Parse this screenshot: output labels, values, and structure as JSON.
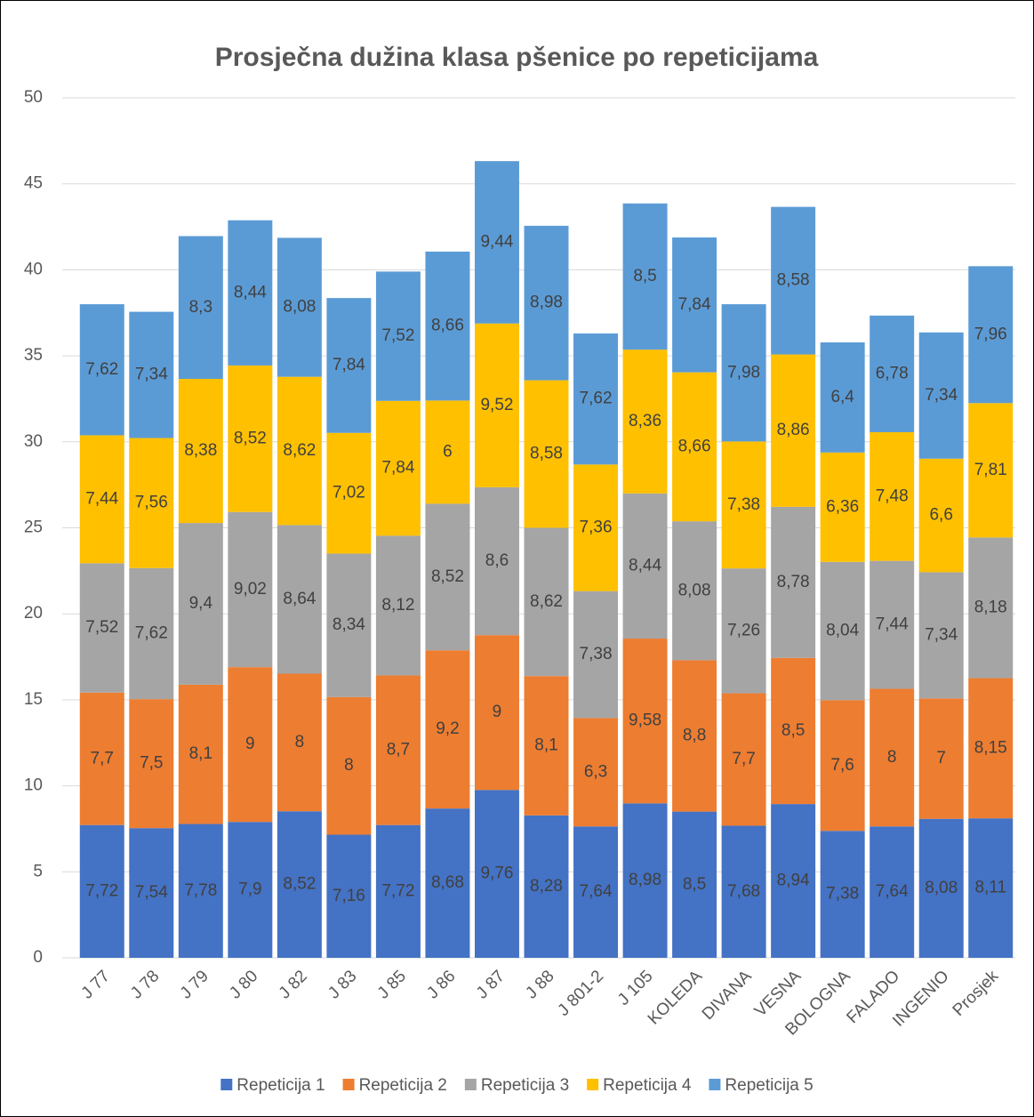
{
  "chart_data": {
    "type": "stacked_bar",
    "title": "Prosječna dužina klasa pšenice po repeticijama",
    "categories": [
      "J 77",
      "J 78",
      "J 79",
      "J 80",
      "J 82",
      "J 83",
      "J 85",
      "J 86",
      "J 87",
      "J 88",
      "J 801-2",
      "J 105",
      "KOLEDA",
      "DIVANA",
      "VESNA",
      "BOLOGNA",
      "FALADO",
      "INGENIO",
      "Prosjek"
    ],
    "series": [
      {
        "name": "Repeticija 1",
        "color": "#4472c4",
        "values": [
          7.72,
          7.54,
          7.78,
          7.9,
          8.52,
          7.16,
          7.72,
          8.68,
          9.76,
          8.28,
          7.64,
          8.98,
          8.5,
          7.68,
          8.94,
          7.38,
          7.64,
          8.08,
          8.11
        ],
        "value_labels": [
          "7,72",
          "7,54",
          "7,78",
          "7,9",
          "8,52",
          "7,16",
          "7,72",
          "8,68",
          "9,76",
          "8,28",
          "7,64",
          "8,98",
          "8,5",
          "7,68",
          "8,94",
          "7,38",
          "7,64",
          "8,08",
          "8,11"
        ]
      },
      {
        "name": "Repeticija 2",
        "color": "#ed7d31",
        "values": [
          7.7,
          7.5,
          8.1,
          9,
          8,
          8,
          8.7,
          9.2,
          9,
          8.1,
          6.3,
          9.58,
          8.8,
          7.7,
          8.5,
          7.6,
          8,
          7,
          8.15
        ],
        "value_labels": [
          "7,7",
          "7,5",
          "8,1",
          "9",
          "8",
          "8",
          "8,7",
          "9,2",
          "9",
          "8,1",
          "6,3",
          "9,58",
          "8,8",
          "7,7",
          "8,5",
          "7,6",
          "8",
          "7",
          "8,15"
        ]
      },
      {
        "name": "Repeticija 3",
        "color": "#a5a5a5",
        "values": [
          7.52,
          7.62,
          9.4,
          9.02,
          8.64,
          8.34,
          8.12,
          8.52,
          8.6,
          8.62,
          7.38,
          8.44,
          8.08,
          7.26,
          8.78,
          8.04,
          7.44,
          7.34,
          8.18
        ],
        "value_labels": [
          "7,52",
          "7,62",
          "9,4",
          "9,02",
          "8,64",
          "8,34",
          "8,12",
          "8,52",
          "8,6",
          "8,62",
          "7,38",
          "8,44",
          "8,08",
          "7,26",
          "8,78",
          "8,04",
          "7,44",
          "7,34",
          "8,18"
        ]
      },
      {
        "name": "Repeticija 4",
        "color": "#ffc000",
        "values": [
          7.44,
          7.56,
          8.38,
          8.52,
          8.62,
          7.02,
          7.84,
          6,
          9.52,
          8.58,
          7.36,
          8.36,
          8.66,
          7.38,
          8.86,
          6.36,
          7.48,
          6.6,
          7.81
        ],
        "value_labels": [
          "7,44",
          "7,56",
          "8,38",
          "8,52",
          "8,62",
          "7,02",
          "7,84",
          "6",
          "9,52",
          "8,58",
          "7,36",
          "8,36",
          "8,66",
          "7,38",
          "8,86",
          "6,36",
          "7,48",
          "6,6",
          "7,81"
        ]
      },
      {
        "name": "Repeticija 5",
        "color": "#5b9bd5",
        "values": [
          7.62,
          7.34,
          8.3,
          8.44,
          8.08,
          7.84,
          7.52,
          8.66,
          9.44,
          8.98,
          7.62,
          8.5,
          7.84,
          7.98,
          8.58,
          6.4,
          6.78,
          7.34,
          7.96
        ],
        "value_labels": [
          "7,62",
          "7,34",
          "8,3",
          "8,44",
          "8,08",
          "7,84",
          "7,52",
          "8,66",
          "9,44",
          "8,98",
          "7,62",
          "8,5",
          "7,84",
          "7,98",
          "8,58",
          "6,4",
          "6,78",
          "7,34",
          "7,96"
        ]
      }
    ],
    "ylim": [
      0,
      50
    ],
    "yticks": [
      0,
      5,
      10,
      15,
      20,
      25,
      30,
      35,
      40,
      45,
      50
    ],
    "grid": true,
    "legend": "bottom"
  }
}
